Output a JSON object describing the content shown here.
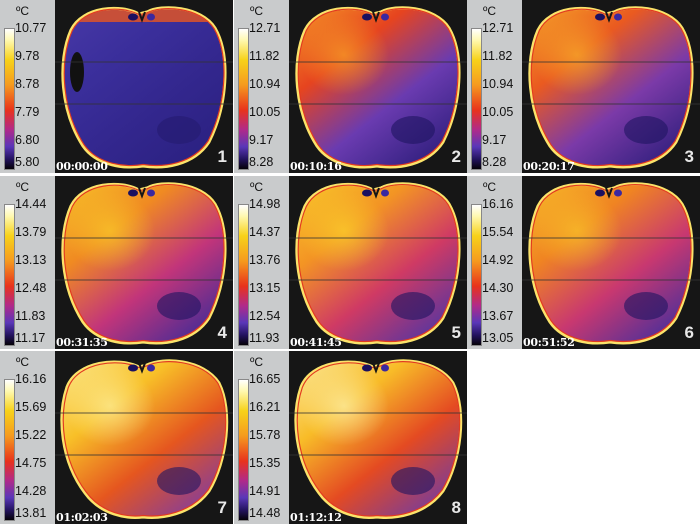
{
  "unit": "ºC",
  "panels": [
    {
      "number": "1",
      "time": "00:00:00",
      "scale": [
        "10.77",
        "9.78",
        "8.78",
        "7.79",
        "6.80",
        "5.80"
      ]
    },
    {
      "number": "2",
      "time": "00:10:16",
      "scale": [
        "12.71",
        "11.82",
        "10.94",
        "10.05",
        "9.17",
        "8.28"
      ]
    },
    {
      "number": "3",
      "time": "00:20:17",
      "scale": [
        "12.71",
        "11.82",
        "10.94",
        "10.05",
        "9.17",
        "8.28"
      ]
    },
    {
      "number": "4",
      "time": "00:31:35",
      "scale": [
        "14.44",
        "13.79",
        "13.13",
        "12.48",
        "11.83",
        "11.17"
      ]
    },
    {
      "number": "5",
      "time": "00:41:45",
      "scale": [
        "14.98",
        "14.37",
        "13.76",
        "13.15",
        "12.54",
        "11.93"
      ]
    },
    {
      "number": "6",
      "time": "00:51:52",
      "scale": [
        "16.16",
        "15.54",
        "14.92",
        "14.30",
        "13.67",
        "13.05"
      ]
    },
    {
      "number": "7",
      "time": "01:02:03",
      "scale": [
        "16.16",
        "15.69",
        "15.22",
        "14.75",
        "14.28",
        "13.81"
      ]
    },
    {
      "number": "8",
      "time": "01:12:12",
      "scale": [
        "16.65",
        "16.21",
        "15.78",
        "15.35",
        "14.91",
        "14.48"
      ]
    }
  ]
}
